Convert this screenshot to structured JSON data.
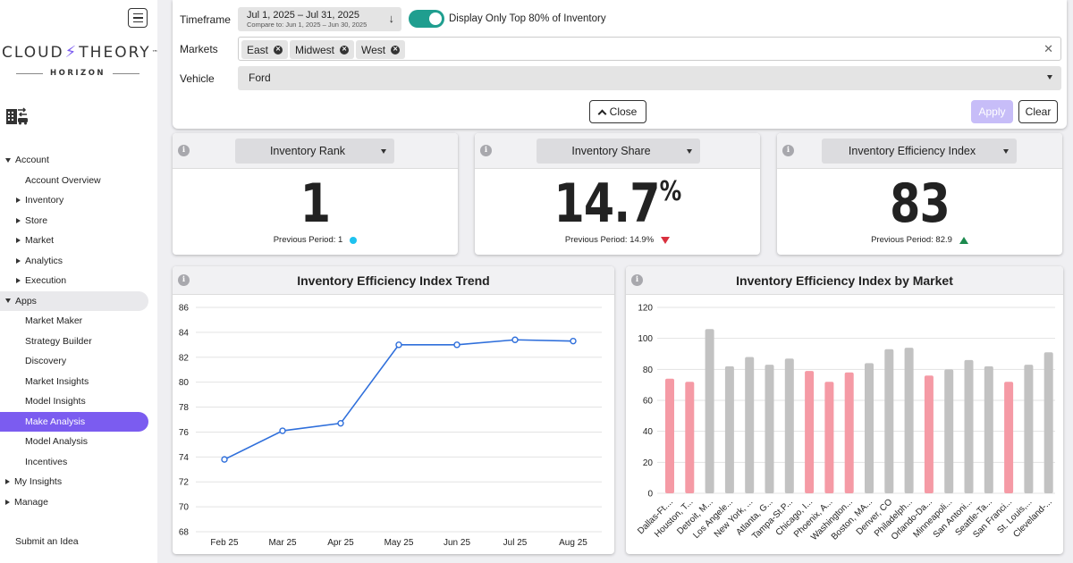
{
  "sidebar": {
    "logo_main_left": "CLOUD",
    "logo_main_right": "THEORY",
    "logo_tm": "™",
    "logo_sub": "HORIZON",
    "nav": [
      {
        "label": "Account",
        "level": 0,
        "caret": "down"
      },
      {
        "label": "Account Overview",
        "level": 1
      },
      {
        "label": "Inventory",
        "level": 1,
        "caret": "right"
      },
      {
        "label": "Store",
        "level": 1,
        "caret": "right"
      },
      {
        "label": "Market",
        "level": 1,
        "caret": "right"
      },
      {
        "label": "Analytics",
        "level": 1,
        "caret": "right"
      },
      {
        "label": "Execution",
        "level": 1,
        "caret": "right"
      },
      {
        "label": "Apps",
        "level": 0,
        "caret": "down"
      },
      {
        "label": "Market Maker",
        "level": 1
      },
      {
        "label": "Strategy Builder",
        "level": 1
      },
      {
        "label": "Discovery",
        "level": 1
      },
      {
        "label": "Market Insights",
        "level": 1
      },
      {
        "label": "Model Insights",
        "level": 1
      },
      {
        "label": "Make Analysis",
        "level": 1
      },
      {
        "label": "Model Analysis",
        "level": 1
      },
      {
        "label": "Incentives",
        "level": 1
      },
      {
        "label": "My Insights",
        "level": 0,
        "caret": "right"
      },
      {
        "label": "Manage",
        "level": 0,
        "caret": "right"
      }
    ],
    "submit_idea": "Submit an Idea"
  },
  "filters": {
    "timeframe_label": "Timeframe",
    "timeframe_value": "Jul 1, 2025 – Jul 31, 2025",
    "compare_value": "Compare to: Jun 1, 2025 – Jun 30, 2025",
    "toggle_label": "Display Only Top 80% of Inventory",
    "markets_label": "Markets",
    "market_chips": [
      "East",
      "Midwest",
      "West"
    ],
    "vehicle_label": "Vehicle",
    "vehicle_value": "Ford",
    "close_label": "Close",
    "apply_label": "Apply",
    "clear_label": "Clear"
  },
  "kpis": [
    {
      "select": "Inventory Rank",
      "value": "1",
      "suffix": "",
      "prev": "Previous Period: 1"
    },
    {
      "select": "Inventory Share",
      "value": "14.7",
      "suffix": "%",
      "prev": "Previous Period: 14.9%"
    },
    {
      "select": "Inventory Efficiency Index",
      "value": "83",
      "suffix": "",
      "prev": "Previous Period: 82.9"
    }
  ],
  "colors": {
    "accent": "#7b5cf0",
    "line": "#2f6fdb",
    "bar_highlight": "#f59aa5",
    "bar_default": "#c2c2c2",
    "down": "#d9303e",
    "up": "#1c8a4e",
    "neutral_dot": "#1ec2ef"
  },
  "chart_data": [
    {
      "type": "line",
      "title": "Inventory Efficiency Index Trend",
      "categories": [
        "Feb 25",
        "Mar 25",
        "Apr 25",
        "May 25",
        "Jun 25",
        "Jul 25",
        "Aug 25"
      ],
      "values": [
        73.8,
        76.1,
        76.7,
        83.0,
        83.0,
        83.4,
        83.3
      ],
      "ylim": [
        68,
        86
      ],
      "yticks": [
        68,
        70,
        72,
        74,
        76,
        78,
        80,
        82,
        84,
        86
      ],
      "grid": true
    },
    {
      "type": "bar",
      "title": "Inventory Efficiency Index by Market",
      "categories": [
        "Dallas-Ft....",
        "Houston, T...",
        "Detroit, M...",
        "Los Angele...",
        "New York, ...",
        "Atlanta, G...",
        "Tampa-St.P...",
        "Chicago, I...",
        "Phoenix, A...",
        "Washington...",
        "Boston, MA...",
        "Denver, CO",
        "Philadelph...",
        "Orlando-Da...",
        "Minneapoli...",
        "San Antoni...",
        "Seattle-Ta...",
        "San Franci...",
        "St. Louis,...",
        "Cleveland-..."
      ],
      "values": [
        74,
        72,
        106,
        82,
        88,
        83,
        87,
        79,
        72,
        78,
        84,
        93,
        94,
        76,
        80,
        86,
        82,
        72,
        83,
        91
      ],
      "highlight": [
        true,
        true,
        false,
        false,
        false,
        false,
        false,
        true,
        true,
        true,
        false,
        false,
        false,
        true,
        false,
        false,
        false,
        true,
        false,
        false
      ],
      "ylim": [
        0,
        120
      ],
      "yticks": [
        0,
        20,
        40,
        60,
        80,
        100,
        120
      ],
      "grid": true
    }
  ]
}
